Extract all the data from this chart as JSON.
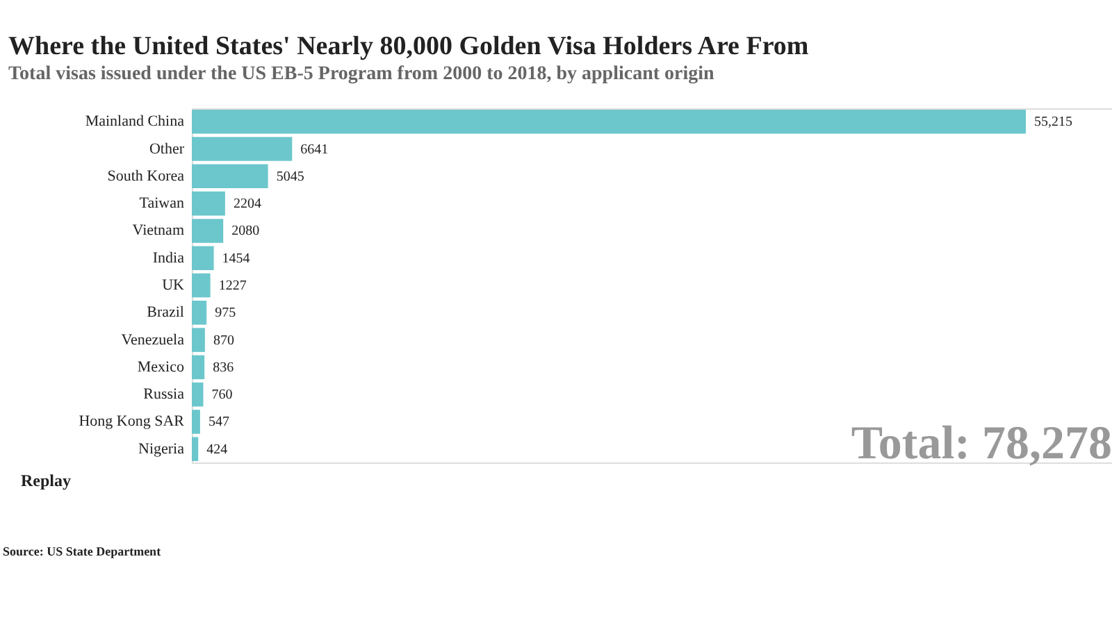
{
  "chart_data": {
    "type": "bar",
    "orientation": "horizontal",
    "title": "Where the United States' Nearly 80,000 Golden Visa Holders Are From",
    "subtitle": "Total visas issued under the US EB-5 Program from 2000 to 2018, by applicant origin",
    "categories": [
      "Mainland China",
      "Other",
      "South Korea",
      "Taiwan",
      "Vietnam",
      "India",
      "UK",
      "Brazil",
      "Venezuela",
      "Mexico",
      "Russia",
      "Hong Kong SAR",
      "Nigeria"
    ],
    "values": [
      55215,
      6641,
      5045,
      2204,
      2080,
      1454,
      1227,
      975,
      870,
      836,
      760,
      547,
      424
    ],
    "value_labels": [
      "55,215",
      "6641",
      "5045",
      "2204",
      "2080",
      "1454",
      "1227",
      "975",
      "870",
      "836",
      "760",
      "547",
      "424"
    ],
    "color": "#6cc7cc",
    "annotations": [
      "Total: 78,278",
      "Replay",
      "Source: US State Department"
    ]
  }
}
